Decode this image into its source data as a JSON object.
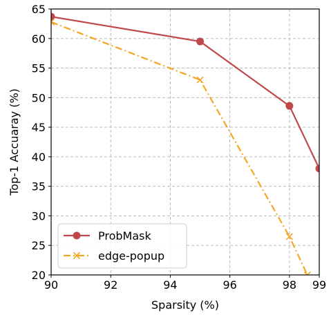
{
  "chart_data": {
    "type": "line",
    "xlabel": "Sparsity (%)",
    "ylabel": "Top-1 Accuaray (%)",
    "xlim": [
      90,
      99
    ],
    "ylim": [
      20,
      65
    ],
    "xticks": [
      90,
      92,
      94,
      96,
      98,
      99
    ],
    "yticks": [
      20,
      25,
      30,
      35,
      40,
      45,
      50,
      55,
      60,
      65
    ],
    "grid": true,
    "legend_position": "lower-left",
    "series": [
      {
        "name": "ProbMask",
        "color": "#c0474a",
        "line_style": "solid",
        "marker": "circle",
        "x": [
          90,
          95,
          98,
          99
        ],
        "y": [
          63.7,
          59.5,
          48.6,
          38.0
        ]
      },
      {
        "name": "edge-popup",
        "color": "#f5a623",
        "line_style": "dash-dot",
        "marker": "x",
        "x": [
          90,
          95,
          98,
          98.6
        ],
        "y": [
          62.8,
          53.0,
          26.5,
          20.0
        ]
      }
    ]
  }
}
